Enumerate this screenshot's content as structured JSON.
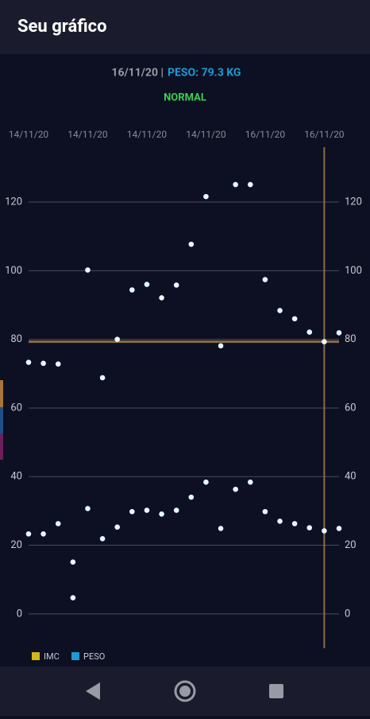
{
  "app": {
    "title": "Seu gráfico",
    "date": "16/11/20 |",
    "weight": "PESO: 79.3 KG",
    "status": "NORMAL"
  },
  "chart_data": {
    "type": "line",
    "x": [
      0,
      1,
      2,
      3,
      4,
      5,
      6,
      7,
      8,
      9,
      10,
      11,
      12,
      13,
      14,
      15,
      16,
      17,
      18,
      19,
      20,
      21
    ],
    "xlim": [
      0,
      21
    ],
    "xticks": [
      {
        "value": 0,
        "label": "14/11/20"
      },
      {
        "value": 4,
        "label": "14/11/20"
      },
      {
        "value": 8,
        "label": "14/11/20"
      },
      {
        "value": 12,
        "label": "14/11/20"
      },
      {
        "value": 16,
        "label": "16/11/20"
      },
      {
        "value": 20,
        "label": "16/11/20"
      }
    ],
    "ylim": [
      -10,
      136
    ],
    "yticks": [
      0,
      20,
      40,
      60,
      80,
      100,
      120
    ],
    "grid": true,
    "series": [
      {
        "name": "IMC",
        "color": "#d4b51c",
        "values": [
          23.3,
          23.3,
          26.3,
          4.7,
          30.7,
          21.9,
          25.3,
          29.8,
          30.2,
          29.1,
          30.2,
          34.0,
          38.4,
          24.9,
          36.3,
          38.4,
          29.8,
          27.0,
          26.3,
          25.1,
          24.2,
          24.9
        ]
      },
      {
        "name": "PESO",
        "color": "#1e9bd6",
        "values": [
          73.3,
          73.0,
          72.8,
          15.1,
          100.2,
          68.8,
          80.0,
          94.4,
          96.0,
          92.1,
          95.8,
          107.7,
          121.6,
          78.1,
          125.1,
          125.1,
          97.4,
          88.4,
          86.0,
          82.1,
          79.3,
          81.9
        ]
      }
    ],
    "highlight": {
      "x": 20,
      "y": 79.3,
      "color": "#8b6d47"
    },
    "legend": "bottom-left"
  }
}
